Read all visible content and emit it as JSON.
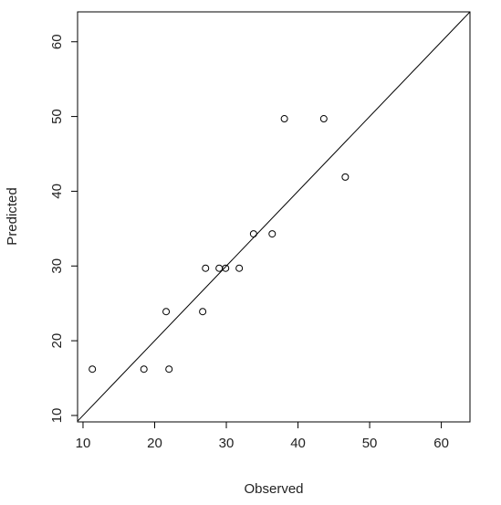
{
  "chart_data": {
    "type": "scatter",
    "x_label": "Observed",
    "y_label": "Predicted",
    "x": [
      11.3,
      18.5,
      22.0,
      21.6,
      26.7,
      27.1,
      29.0,
      29.9,
      31.8,
      33.8,
      36.4,
      38.1,
      43.6,
      46.6
    ],
    "values": [
      16.2,
      16.2,
      16.2,
      23.9,
      23.9,
      29.7,
      29.7,
      29.7,
      29.7,
      34.3,
      34.3,
      49.7,
      49.7,
      41.9
    ],
    "color": "#000000",
    "reference_line": {
      "slope": 1,
      "intercept": 0
    },
    "xlim": [
      9.24,
      64.0
    ],
    "ylim": [
      9.14,
      64.0
    ],
    "xticks": [
      10,
      20,
      30,
      40,
      50,
      60
    ],
    "yticks": [
      10,
      20,
      30,
      40,
      50,
      60
    ]
  }
}
